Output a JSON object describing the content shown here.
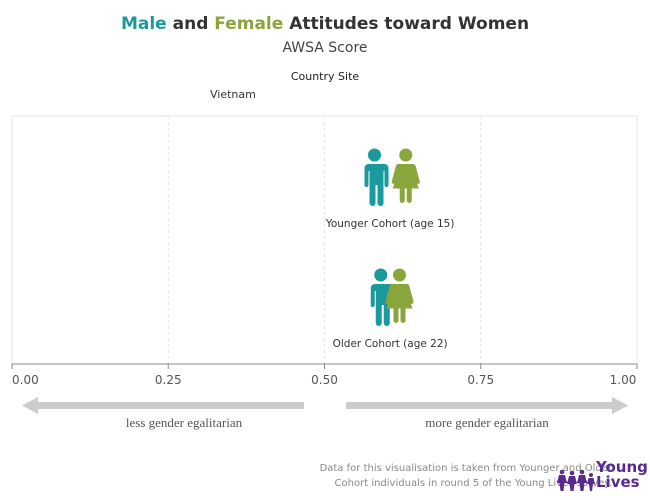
{
  "header": {
    "title_male": "Male",
    "title_and": " and ",
    "title_female": "Female",
    "title_rest": " Attitudes toward Women",
    "subtitle": "AWSA Score",
    "column_header": "Country Site",
    "row_header": "Vietnam"
  },
  "arrows": {
    "left_label": "less gender egalitarian",
    "right_label": "more gender egalitarian"
  },
  "footer": {
    "note": "Data for this visualisation is taken from Younger and Older Cohort individuals in round 5 of the Young Lives survey.",
    "logo_line1": "Young",
    "logo_line2": "Lives"
  },
  "colors": {
    "male": "#1a9a9c",
    "female": "#8aa53b",
    "arrow": "#cccccc",
    "logo": "#5a2a8e"
  },
  "chart_data": {
    "type": "scatter",
    "title": "Male and Female Attitudes toward Women",
    "subtitle": "AWSA Score",
    "xlim": [
      0,
      1
    ],
    "x_ticks": [
      "0.00",
      "0.25",
      "0.50",
      "0.75",
      "1.00"
    ],
    "x_tick_values": [
      0,
      0.25,
      0.5,
      0.75,
      1
    ],
    "grid": true,
    "categories": [
      "Younger Cohort (age 15)",
      "Older Cohort (age 22)"
    ],
    "series": [
      {
        "name": "Male",
        "marker": "male-figure",
        "values": [
          0.58,
          0.59
        ]
      },
      {
        "name": "Female",
        "marker": "female-figure",
        "values": [
          0.63,
          0.62
        ]
      }
    ]
  }
}
